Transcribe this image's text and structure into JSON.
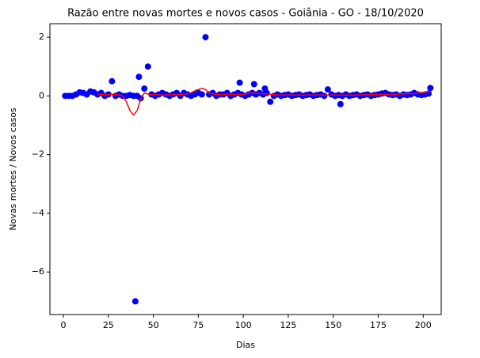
{
  "chart_data": {
    "type": "scatter",
    "title": "Razão entre novas mortes e novos casos - Goiânia - GO - 18/10/2020",
    "x_label": "Dias",
    "y_label": "Novas mortes / Novos casos",
    "xlim": [
      -7.5,
      210
    ],
    "ylim": [
      -7.45,
      2.46
    ],
    "xticks": [
      0,
      25,
      50,
      75,
      100,
      125,
      150,
      175,
      200
    ],
    "yticks": [
      {
        "value": -6,
        "label": "−6"
      },
      {
        "value": -4,
        "label": "−4"
      },
      {
        "value": -2,
        "label": "−2"
      },
      0,
      2
    ],
    "grid": false,
    "series": [
      {
        "mode": "markers",
        "color": "#0000ff",
        "x": [
          1,
          3,
          5,
          7,
          9,
          11,
          13,
          15,
          17,
          19,
          21,
          23,
          25,
          27,
          29,
          31,
          33,
          35,
          37,
          39,
          40,
          41,
          42,
          43,
          45,
          47,
          49,
          51,
          53,
          55,
          57,
          59,
          61,
          63,
          65,
          67,
          69,
          71,
          73,
          75,
          77,
          79,
          81,
          83,
          85,
          87,
          89,
          91,
          93,
          95,
          97,
          98,
          99,
          101,
          103,
          105,
          106,
          107,
          109,
          111,
          112,
          113,
          115,
          117,
          119,
          121,
          123,
          125,
          127,
          129,
          131,
          133,
          135,
          137,
          139,
          141,
          143,
          145,
          147,
          149,
          151,
          153,
          154,
          155,
          157,
          159,
          161,
          163,
          165,
          167,
          169,
          171,
          173,
          175,
          177,
          179,
          181,
          183,
          185,
          187,
          189,
          191,
          193,
          195,
          197,
          199,
          201,
          203,
          204
        ],
        "values": [
          0,
          0,
          0,
          0.05,
          0.12,
          0.1,
          0.05,
          0.15,
          0.12,
          0.05,
          0.1,
          0,
          0.05,
          0.5,
          0,
          0.05,
          0,
          0,
          0.03,
          0,
          -7,
          0,
          0.65,
          -0.08,
          0.25,
          1.0,
          0.05,
          0,
          0.05,
          0.1,
          0.05,
          0,
          0.05,
          0.1,
          0,
          0.1,
          0.05,
          0,
          0.05,
          0.1,
          0.05,
          2.0,
          0.05,
          0.1,
          0,
          0.05,
          0.05,
          0.1,
          0,
          0.05,
          0.1,
          0.45,
          0.05,
          0,
          0.05,
          0.1,
          0.4,
          0.05,
          0.1,
          0.05,
          0.25,
          0.1,
          -0.2,
          0,
          0.05,
          0,
          0.03,
          0.05,
          0,
          0.03,
          0.05,
          0,
          0.03,
          0.05,
          0,
          0.03,
          0.05,
          0,
          0.22,
          0.05,
          0,
          0.03,
          -0.28,
          0,
          0.05,
          0,
          0.03,
          0.05,
          0,
          0.03,
          0.05,
          0,
          0.03,
          0.05,
          0.08,
          0.1,
          0.05,
          0.03,
          0.05,
          0,
          0.05,
          0.03,
          0.05,
          0.1,
          0.05,
          0.03,
          0.05,
          0.08,
          0.27
        ]
      },
      {
        "mode": "lines",
        "color": "#ff0000",
        "x": [
          19,
          25,
          30,
          33,
          35,
          37,
          39,
          41,
          43,
          45,
          48,
          55,
          65,
          70,
          74,
          77,
          79,
          81,
          84,
          90,
          100,
          104,
          110,
          120,
          140,
          160,
          180,
          195,
          204
        ],
        "values": [
          0.05,
          0.05,
          0.05,
          0,
          -0.2,
          -0.5,
          -0.65,
          -0.5,
          -0.1,
          0.1,
          0.05,
          0.03,
          0.05,
          0.08,
          0.2,
          0.25,
          0.22,
          0.1,
          0.05,
          0.05,
          0.05,
          0.1,
          0.08,
          0.03,
          0.03,
          0.03,
          0.05,
          0.08,
          0.15
        ]
      }
    ]
  }
}
